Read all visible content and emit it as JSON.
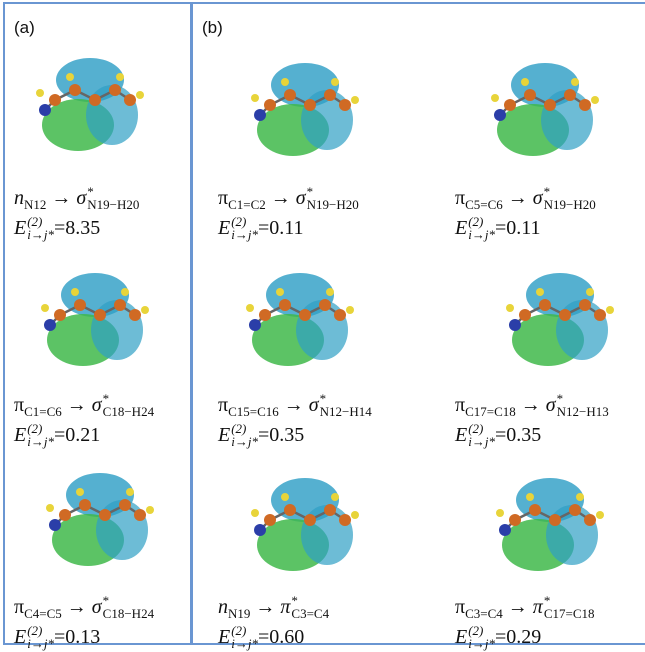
{
  "notation": {
    "arrow": "→",
    "acceptor_star": "*",
    "energy_symbol": "E",
    "energy_sup": "(2)",
    "energy_sub": "i→j*",
    "equals": "="
  },
  "panels": [
    {
      "label": "(a)",
      "cells": [
        {
          "donor": "n",
          "donor_sub": "N12",
          "acceptor": "σ",
          "acceptor_sub": "N19−H20",
          "energy": "8.35"
        },
        {
          "donor": "π",
          "donor_sub": "C1=C6",
          "acceptor": "σ",
          "acceptor_sub": "C18−H24",
          "energy": "0.21"
        },
        {
          "donor": "π",
          "donor_sub": "C4=C5",
          "acceptor": "σ",
          "acceptor_sub": "C18−H24",
          "energy": "0.13"
        }
      ]
    },
    {
      "label": "(b)",
      "cells": [
        {
          "donor": "π",
          "donor_sub": "C1=C2",
          "acceptor": "σ",
          "acceptor_sub": "N19−H20",
          "energy": "0.11"
        },
        {
          "donor": "π",
          "donor_sub": "C5=C6",
          "acceptor": "σ",
          "acceptor_sub": "N19−H20",
          "energy": "0.11"
        },
        {
          "donor": "π",
          "donor_sub": "C15=C16",
          "acceptor": "σ",
          "acceptor_sub": "N12−H14",
          "energy": "0.35"
        },
        {
          "donor": "π",
          "donor_sub": "C17=C18",
          "acceptor": "σ",
          "acceptor_sub": "N12−H13",
          "energy": "0.35"
        },
        {
          "donor": "n",
          "donor_sub": "N19",
          "acceptor": "π",
          "acceptor_sub": "C3=C4",
          "energy": "0.60"
        },
        {
          "donor": "π",
          "donor_sub": "C3=C4",
          "acceptor": "π",
          "acceptor_sub": "C17=C18",
          "energy": "0.29"
        }
      ]
    }
  ]
}
